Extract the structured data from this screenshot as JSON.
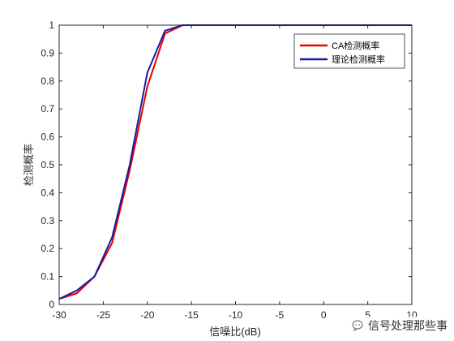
{
  "chart_data": {
    "type": "line",
    "title": "",
    "xlabel": "信噪比(dB)",
    "ylabel": "检测概率",
    "xlim": [
      -30,
      10
    ],
    "ylim": [
      0,
      1
    ],
    "xticks": [
      -30,
      -25,
      -20,
      -15,
      -10,
      -5,
      0,
      5,
      10
    ],
    "yticks": [
      0,
      0.1,
      0.2,
      0.3,
      0.4,
      0.5,
      0.6,
      0.7,
      0.8,
      0.9,
      1
    ],
    "xtick_labels": [
      "-30",
      "-25",
      "-20",
      "-15",
      "-10",
      "-5",
      "0",
      "5",
      "10"
    ],
    "ytick_labels": [
      "0",
      "0.1",
      "0.2",
      "0.3",
      "0.4",
      "0.5",
      "0.6",
      "0.7",
      "0.8",
      "0.9",
      "1"
    ],
    "grid": false,
    "legend_position": "top-right",
    "series": [
      {
        "name": "CA检测概率",
        "color": "#e60000",
        "x": [
          -30,
          -28,
          -26,
          -24,
          -22,
          -20,
          -18,
          -16,
          -14,
          -12,
          -10,
          -8,
          -6,
          -4,
          -2,
          0,
          2,
          4,
          6,
          8,
          10
        ],
        "y": [
          0.02,
          0.04,
          0.1,
          0.22,
          0.48,
          0.78,
          0.97,
          1.0,
          1.0,
          1.0,
          1.0,
          1.0,
          1.0,
          1.0,
          1.0,
          1.0,
          1.0,
          1.0,
          1.0,
          1.0,
          1.0
        ]
      },
      {
        "name": "理论检测概率",
        "color": "#1a1aa6",
        "x": [
          -30,
          -28,
          -26,
          -24,
          -22,
          -20,
          -18,
          -16,
          -14,
          -12,
          -10,
          -8,
          -6,
          -4,
          -2,
          0,
          2,
          4,
          6,
          8,
          10
        ],
        "y": [
          0.02,
          0.05,
          0.1,
          0.24,
          0.5,
          0.83,
          0.98,
          1.0,
          1.0,
          1.0,
          1.0,
          1.0,
          1.0,
          1.0,
          1.0,
          1.0,
          1.0,
          1.0,
          1.0,
          1.0,
          1.0
        ]
      }
    ]
  },
  "watermark": {
    "text": "信号处理那些事",
    "icon": "wechat-bubble-icon"
  }
}
